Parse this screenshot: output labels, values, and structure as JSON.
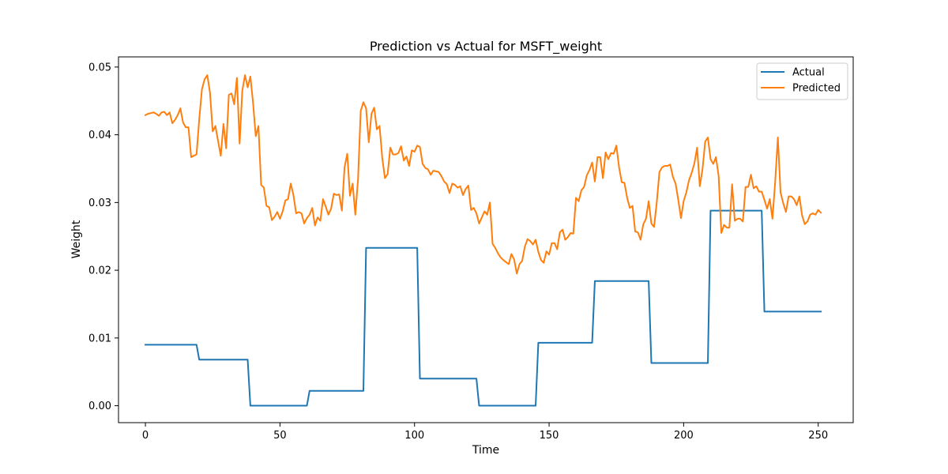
{
  "chart_data": {
    "type": "line",
    "title": "Prediction vs Actual for MSFT_weight",
    "xlabel": "Time",
    "ylabel": "Weight",
    "xlim": [
      -10,
      263
    ],
    "ylim": [
      -0.0025,
      0.0515
    ],
    "xticks": [
      0,
      50,
      100,
      150,
      200,
      250
    ],
    "xtick_labels": [
      "0",
      "50",
      "100",
      "150",
      "200",
      "250"
    ],
    "yticks": [
      0.0,
      0.01,
      0.02,
      0.03,
      0.04,
      0.05
    ],
    "ytick_labels": [
      "0.00",
      "0.01",
      "0.02",
      "0.03",
      "0.04",
      "0.05"
    ],
    "grid": false,
    "legend_position": "upper right",
    "series": [
      {
        "name": "Actual",
        "color": "#1f77b4",
        "x": [
          0,
          19,
          20,
          38,
          39,
          60,
          61,
          81,
          82,
          101,
          102,
          123,
          124,
          145,
          146,
          166,
          167,
          187,
          188,
          209,
          210,
          229,
          230,
          251
        ],
        "y": [
          0.009,
          0.009,
          0.0068,
          0.0068,
          0.0,
          0.0,
          0.0022,
          0.0022,
          0.0233,
          0.0233,
          0.004,
          0.004,
          0.0,
          0.0,
          0.0093,
          0.0093,
          0.0184,
          0.0184,
          0.0063,
          0.0063,
          0.0288,
          0.0288,
          0.0139,
          0.0139
        ]
      },
      {
        "name": "Predicted",
        "color": "#ff7f0e",
        "x": [
          0,
          1,
          2,
          3,
          4,
          5,
          6,
          7,
          8,
          9,
          10,
          11,
          12,
          13,
          14,
          15,
          16,
          17,
          18,
          19,
          20,
          21,
          22,
          23,
          24,
          25,
          26,
          27,
          28,
          29,
          30,
          31,
          32,
          33,
          34,
          35,
          36,
          37,
          38,
          39,
          40,
          41,
          42,
          43,
          44,
          45,
          46,
          47,
          48,
          49,
          50,
          51,
          52,
          53,
          54,
          55,
          56,
          57,
          58,
          59,
          60,
          61,
          62,
          63,
          64,
          65,
          66,
          67,
          68,
          69,
          70,
          71,
          72,
          73,
          74,
          75,
          76,
          77,
          78,
          79,
          80,
          81,
          82,
          83,
          84,
          85,
          86,
          87,
          88,
          89,
          90,
          91,
          92,
          93,
          94,
          95,
          96,
          97,
          98,
          99,
          100,
          101,
          102,
          103,
          104,
          105,
          106,
          107,
          108,
          109,
          110,
          111,
          112,
          113,
          114,
          115,
          116,
          117,
          118,
          119,
          120,
          121,
          122,
          123,
          124,
          125,
          126,
          127,
          128,
          129,
          130,
          131,
          132,
          133,
          134,
          135,
          136,
          137,
          138,
          139,
          140,
          141,
          142,
          143,
          144,
          145,
          146,
          147,
          148,
          149,
          150,
          151,
          152,
          153,
          154,
          155,
          156,
          157,
          158,
          159,
          160,
          161,
          162,
          163,
          164,
          165,
          166,
          167,
          168,
          169,
          170,
          171,
          172,
          173,
          174,
          175,
          176,
          177,
          178,
          179,
          180,
          181,
          182,
          183,
          184,
          185,
          186,
          187,
          188,
          189,
          190,
          191,
          192,
          193,
          194,
          195,
          196,
          197,
          198,
          199,
          200,
          201,
          202,
          203,
          204,
          205,
          206,
          207,
          208,
          209,
          210,
          211,
          212,
          213,
          214,
          215,
          216,
          217,
          218,
          219,
          220,
          221,
          222,
          223,
          224,
          225,
          226,
          227,
          228,
          229,
          230,
          231,
          232,
          233,
          234,
          235,
          236,
          237,
          238,
          239,
          240,
          241,
          242,
          243,
          244,
          245,
          246,
          247,
          248,
          249,
          250,
          251
        ],
        "y": [
          0.0429,
          0.0431,
          0.0432,
          0.0433,
          0.0431,
          0.0428,
          0.0433,
          0.0434,
          0.0429,
          0.0433,
          0.0417,
          0.0422,
          0.0429,
          0.0439,
          0.0418,
          0.0411,
          0.0411,
          0.0367,
          0.0369,
          0.0371,
          0.0423,
          0.0467,
          0.0482,
          0.0488,
          0.0462,
          0.0405,
          0.0413,
          0.0391,
          0.0369,
          0.0416,
          0.038,
          0.0459,
          0.0461,
          0.0445,
          0.0484,
          0.0387,
          0.0465,
          0.0488,
          0.047,
          0.0486,
          0.0447,
          0.0398,
          0.0413,
          0.0326,
          0.0322,
          0.0295,
          0.0293,
          0.0274,
          0.0279,
          0.0286,
          0.0276,
          0.0287,
          0.0303,
          0.0305,
          0.0328,
          0.0311,
          0.0284,
          0.0286,
          0.0284,
          0.0269,
          0.0277,
          0.0282,
          0.0292,
          0.0266,
          0.0278,
          0.0273,
          0.0305,
          0.0294,
          0.0282,
          0.0291,
          0.0313,
          0.0311,
          0.0312,
          0.0288,
          0.0352,
          0.0372,
          0.031,
          0.0328,
          0.0282,
          0.0334,
          0.0435,
          0.0448,
          0.0439,
          0.0389,
          0.0431,
          0.044,
          0.0408,
          0.0413,
          0.0366,
          0.0336,
          0.0342,
          0.0381,
          0.0371,
          0.0371,
          0.0373,
          0.0383,
          0.0362,
          0.0368,
          0.0354,
          0.0377,
          0.0375,
          0.0384,
          0.0382,
          0.0357,
          0.0351,
          0.0349,
          0.0341,
          0.0347,
          0.0346,
          0.0345,
          0.0339,
          0.0331,
          0.0327,
          0.0314,
          0.0328,
          0.0326,
          0.0322,
          0.0324,
          0.0311,
          0.032,
          0.0325,
          0.0289,
          0.0292,
          0.0284,
          0.0269,
          0.0278,
          0.0287,
          0.0282,
          0.03,
          0.0239,
          0.0233,
          0.0225,
          0.0219,
          0.0215,
          0.0212,
          0.0209,
          0.0224,
          0.0216,
          0.0195,
          0.0209,
          0.0214,
          0.0235,
          0.0246,
          0.0243,
          0.0238,
          0.0245,
          0.0227,
          0.0215,
          0.0211,
          0.0228,
          0.0223,
          0.024,
          0.024,
          0.0231,
          0.0256,
          0.026,
          0.0245,
          0.0249,
          0.0255,
          0.0254,
          0.0307,
          0.0302,
          0.0318,
          0.0323,
          0.034,
          0.0348,
          0.0359,
          0.0331,
          0.0367,
          0.0367,
          0.0336,
          0.0374,
          0.0364,
          0.0373,
          0.0372,
          0.0384,
          0.0352,
          0.033,
          0.0329,
          0.0307,
          0.0292,
          0.0295,
          0.0257,
          0.0256,
          0.0245,
          0.0268,
          0.0276,
          0.0302,
          0.0269,
          0.0264,
          0.03,
          0.0345,
          0.0352,
          0.0354,
          0.0354,
          0.0356,
          0.0338,
          0.0328,
          0.0304,
          0.0277,
          0.0302,
          0.0315,
          0.0333,
          0.0344,
          0.0358,
          0.0381,
          0.0324,
          0.0349,
          0.039,
          0.0396,
          0.0364,
          0.0357,
          0.0367,
          0.0339,
          0.0255,
          0.0267,
          0.0263,
          0.0263,
          0.0327,
          0.0273,
          0.0276,
          0.0276,
          0.0272,
          0.0323,
          0.0323,
          0.0341,
          0.0321,
          0.0324,
          0.0316,
          0.0316,
          0.0304,
          0.0291,
          0.0305,
          0.0276,
          0.033,
          0.0396,
          0.0315,
          0.0299,
          0.0286,
          0.0309,
          0.0309,
          0.0305,
          0.0296,
          0.0309,
          0.0281,
          0.0268,
          0.0272,
          0.0282,
          0.0284,
          0.0282,
          0.0289,
          0.0285
        ]
      }
    ]
  }
}
